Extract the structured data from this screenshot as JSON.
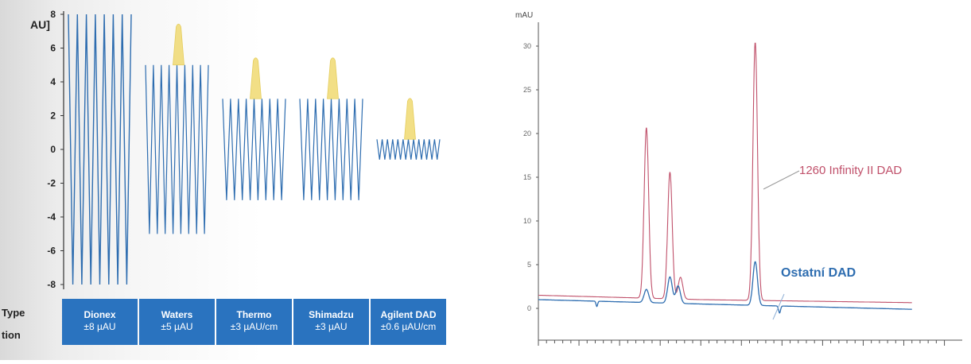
{
  "chart_data": [
    {
      "type": "line",
      "ylabel": "AU]",
      "yticks": [
        "8",
        "6",
        "4",
        "2",
        "0",
        "-2",
        "-4",
        "-6",
        "-8"
      ],
      "ylim": [
        -8,
        8
      ],
      "row_labels": [
        "Type",
        "tion"
      ],
      "grid": false,
      "series": [
        {
          "name": "Dionex",
          "spec": "±8 µAU",
          "noise_amplitude": 8,
          "peak": false
        },
        {
          "name": "Waters",
          "spec": "±5 µAU",
          "noise_amplitude": 5,
          "peak": true
        },
        {
          "name": "Thermo",
          "spec": "±3 µAU/cm",
          "noise_amplitude": 3,
          "peak": true
        },
        {
          "name": "Shimadzu",
          "spec": "±3 µAU",
          "noise_amplitude": 3,
          "peak": true
        },
        {
          "name": "Agilent DAD",
          "spec": "±0.6 µAU/cm",
          "noise_amplitude": 0.6,
          "peak": true
        }
      ],
      "colors": {
        "trace": "#2e6db0",
        "peak": "#f1dc7a",
        "table": "#2a73bf",
        "table_text": "#ffffff"
      }
    },
    {
      "type": "line",
      "ylabel": "mAU",
      "yticks": [
        "30",
        "25",
        "20",
        "15",
        "10",
        "5",
        "0"
      ],
      "ylim": [
        -2,
        32
      ],
      "xlim": [
        0,
        5.2
      ],
      "grid": false,
      "series": [
        {
          "name": "1260 Infinity II DAD",
          "color": "#c0506a",
          "baseline": [
            [
              0,
              1.5
            ],
            [
              2.0,
              1.0
            ],
            [
              5.0,
              0.6
            ]
          ],
          "peaks": [
            {
              "x": 1.33,
              "height": 19.5
            },
            {
              "x": 1.62,
              "height": 14.5
            },
            {
              "x": 1.75,
              "height": 2.5
            },
            {
              "x": 2.67,
              "height": 29.5
            }
          ]
        },
        {
          "name": "Ostatní DAD",
          "color": "#2e6db0",
          "baseline": [
            [
              0,
              1.0
            ],
            [
              2.0,
              0.5
            ],
            [
              5.0,
              -0.2
            ]
          ],
          "peaks": [
            {
              "x": 1.33,
              "height": 1.5
            },
            {
              "x": 1.62,
              "height": 3.0
            },
            {
              "x": 1.72,
              "height": 2.0
            },
            {
              "x": 2.67,
              "height": 5.0
            }
          ]
        }
      ]
    }
  ]
}
